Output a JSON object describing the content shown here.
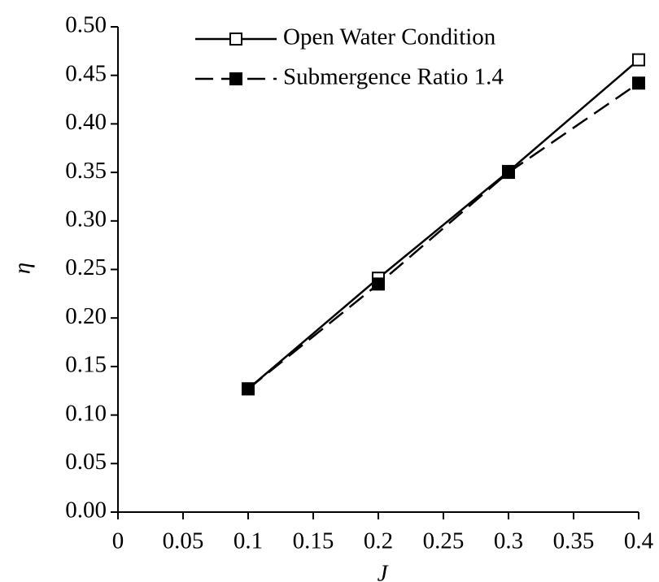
{
  "chart_data": {
    "type": "line",
    "xlabel": "J",
    "ylabel": "η",
    "x": [
      0.1,
      0.2,
      0.3,
      0.4
    ],
    "series": [
      {
        "name": "Open Water Condition",
        "color": "#000000",
        "line_style": "solid",
        "marker": "square",
        "marker_filled": false,
        "values": [
          0.127,
          0.241,
          0.351,
          0.466
        ]
      },
      {
        "name": "Submergence Ratio 1.4",
        "color": "#000000",
        "line_style": "dashed",
        "marker": "square",
        "marker_filled": true,
        "values": [
          0.127,
          0.235,
          0.35,
          0.442
        ]
      }
    ],
    "xlim": [
      0,
      0.4
    ],
    "xticks": [
      0,
      0.05,
      0.1,
      0.15,
      0.2,
      0.25,
      0.3,
      0.35,
      0.4
    ],
    "ylim": [
      0,
      0.5
    ],
    "yticks": [
      {
        "value": 0,
        "label": "0.00"
      },
      0.05,
      {
        "value": 0.1,
        "label": "0.10"
      },
      0.15,
      {
        "value": 0.2,
        "label": "0.20"
      },
      0.25,
      {
        "value": 0.3,
        "label": "0.30"
      },
      0.35,
      {
        "value": 0.4,
        "label": "0.40"
      },
      0.45,
      {
        "value": 0.5,
        "label": "0.50"
      }
    ],
    "grid": false,
    "legend": "upper center"
  }
}
